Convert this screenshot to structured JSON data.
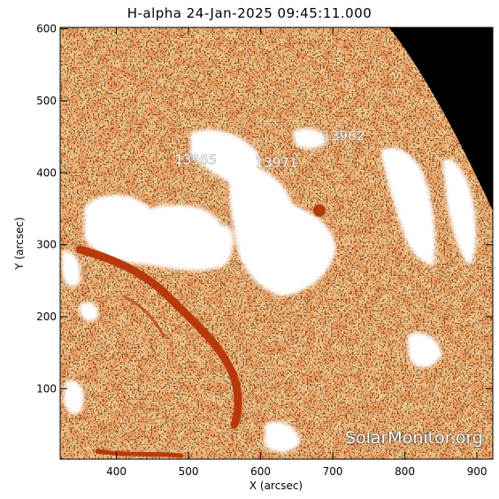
{
  "title": "H-alpha 24-Jan-2025 09:45:11.000",
  "xlabel": "X (arcsec)",
  "ylabel": "Y (arcsec)",
  "x_ticks": [
    400,
    500,
    600,
    700,
    800,
    900
  ],
  "y_ticks": [
    100,
    200,
    300,
    400,
    500,
    600
  ],
  "x_range": [
    322,
    922
  ],
  "y_range": [
    2,
    602
  ],
  "regions": [
    {
      "label": "13965",
      "x": 510,
      "y": 412
    },
    {
      "label": "13971",
      "x": 622,
      "y": 408
    },
    {
      "label": "13962",
      "x": 715,
      "y": 445
    }
  ],
  "watermark": "SolarMonitor.org",
  "colors": {
    "disk": "#f08a3c",
    "bright": "#ffffff",
    "dark": "#000000",
    "filament": "#b83a0c"
  }
}
